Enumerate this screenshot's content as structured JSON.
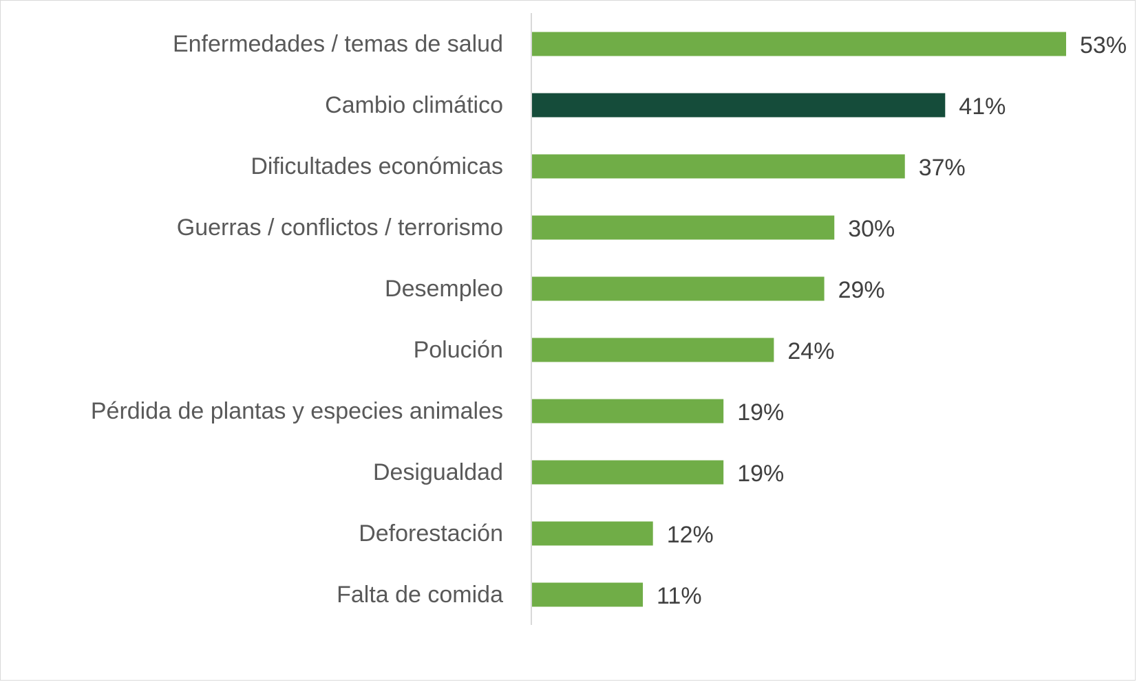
{
  "chart_data": {
    "type": "bar",
    "orientation": "horizontal",
    "categories": [
      "Enfermedades / temas de salud",
      "Cambio climático",
      "Dificultades económicas",
      "Guerras / conflictos / terrorismo",
      "Desempleo",
      "Polución",
      "Pérdida de plantas y especies animales",
      "Desigualdad",
      "Deforestación",
      "Falta de comida"
    ],
    "values": [
      53,
      41,
      37,
      30,
      29,
      24,
      19,
      19,
      12,
      11
    ],
    "value_labels": [
      "53%",
      "41%",
      "37%",
      "30%",
      "29%",
      "24%",
      "19%",
      "19%",
      "12%",
      "11%"
    ],
    "unit": "%",
    "xlim": [
      0,
      55
    ],
    "grid": false,
    "colors": {
      "default": "#70AD47",
      "highlight": "#154C3A"
    },
    "highlight_index": 1
  }
}
